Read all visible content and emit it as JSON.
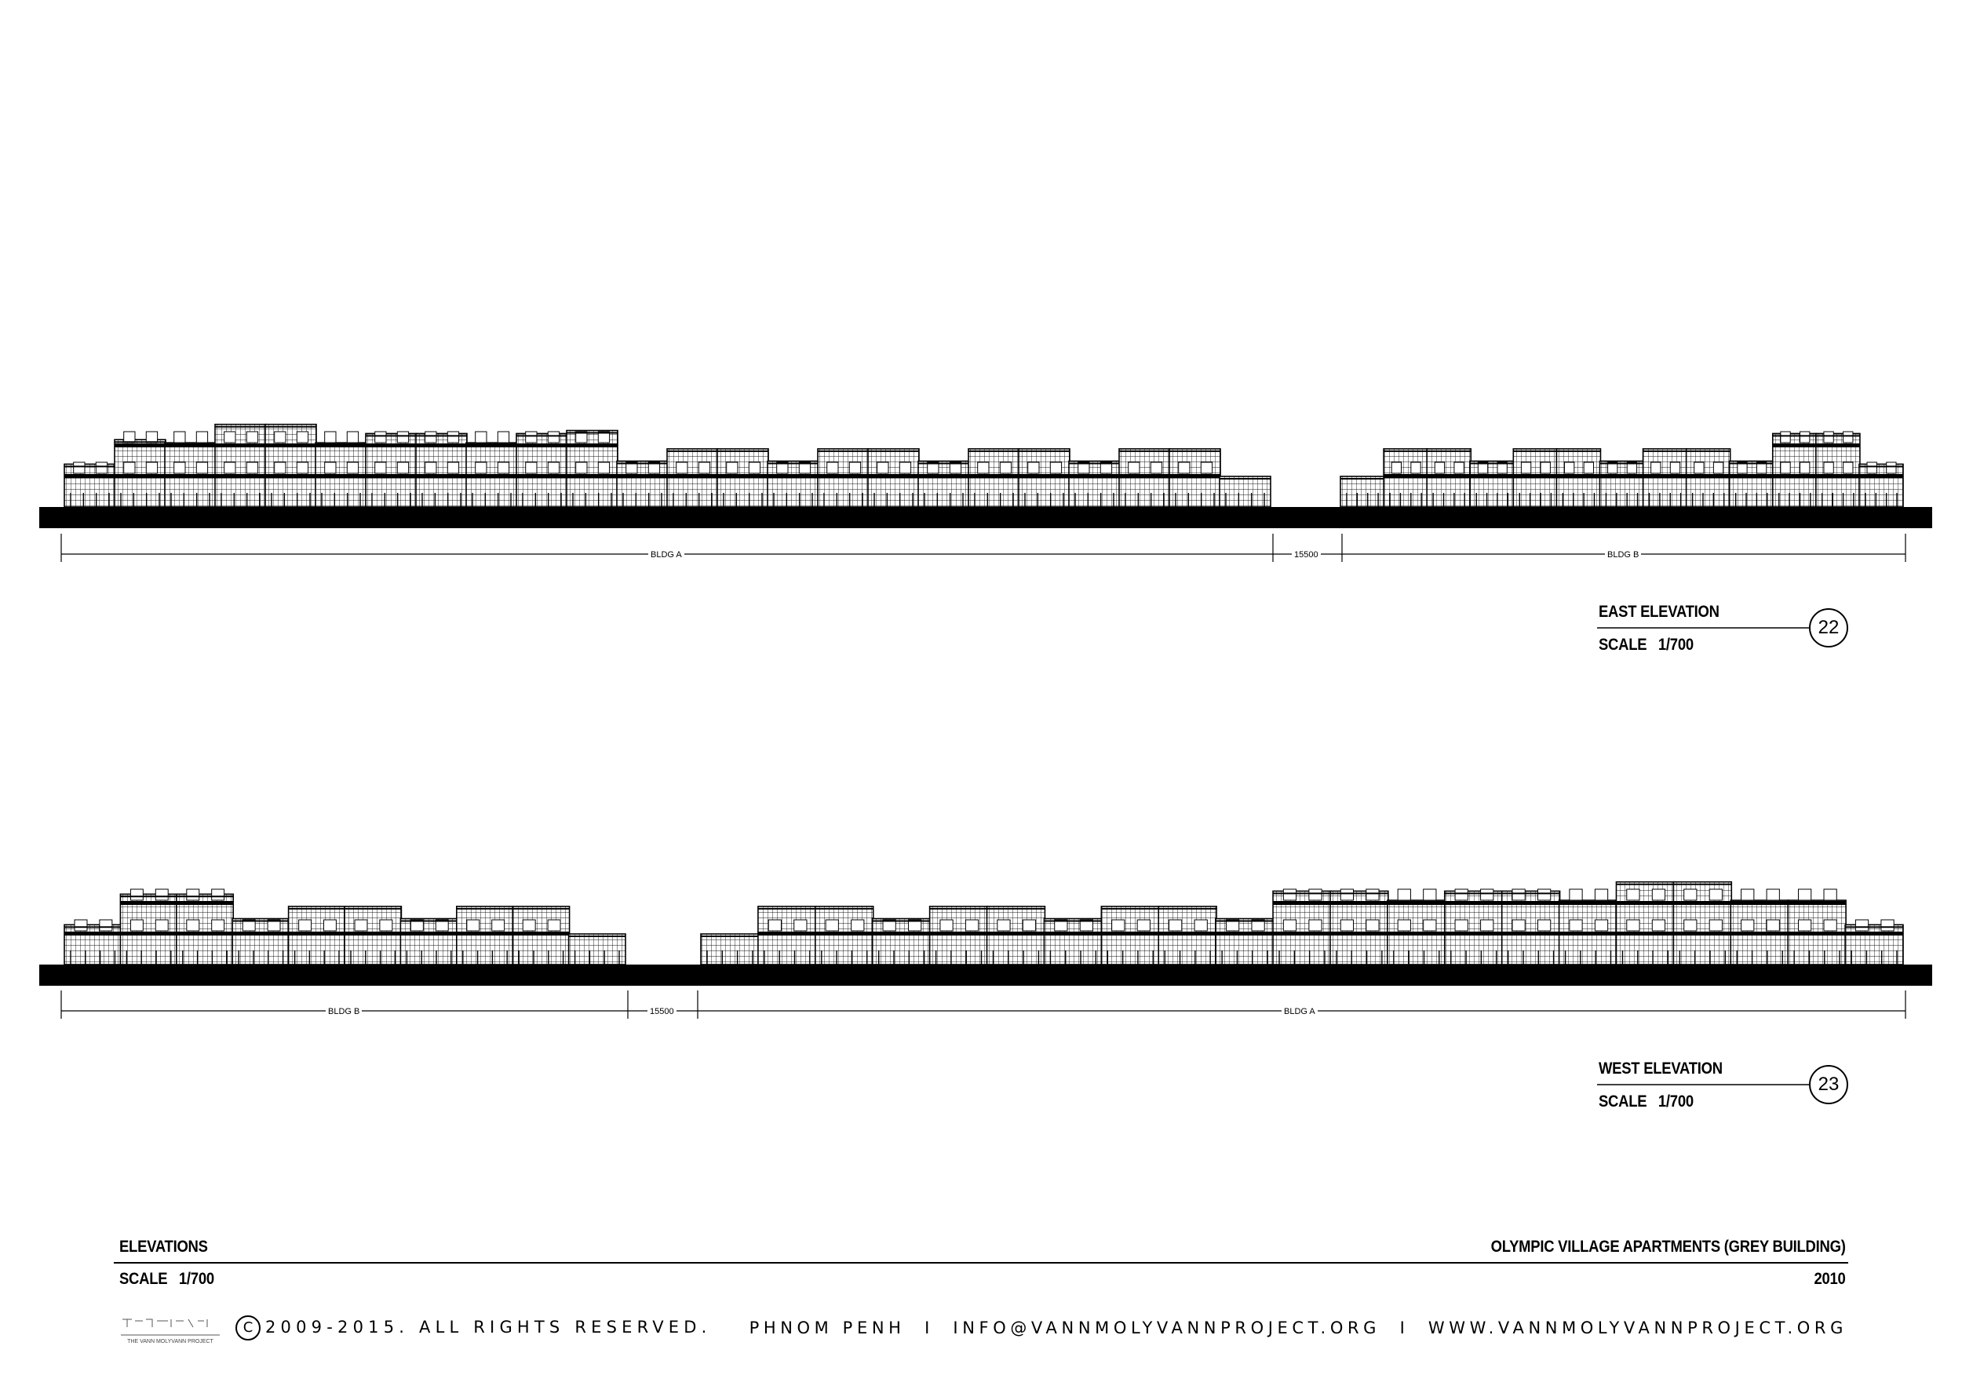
{
  "elevations": [
    {
      "id": "east",
      "title": "EAST ELEVATION",
      "scale": "SCALE   1/700",
      "tag": "22",
      "dim_labels": [
        "BLDG A",
        "15500",
        "BLDG B"
      ]
    },
    {
      "id": "west",
      "title": "WEST ELEVATION",
      "scale": "SCALE   1/700",
      "tag": "23",
      "dim_labels": [
        "BLDG B",
        "15500",
        "BLDG A"
      ]
    }
  ],
  "sheet": {
    "title": "ELEVATIONS",
    "scale": "SCALE   1/700",
    "project": "OLYMPIC VILLAGE APARTMENTS (GREY BUILDING)",
    "year": "2010"
  },
  "footer": {
    "copyright_mark": "C",
    "copyright": "2009-2015. ALL RIGHTS RESERVED.",
    "contact": "PHNOM PENH  I  INFO@VANNMOLYVANNPROJECT.ORG  I  WWW.VANNMOLYVANNPROJECT.ORG",
    "logo_text": "THE VANN MOLYVANN PROJECT"
  }
}
